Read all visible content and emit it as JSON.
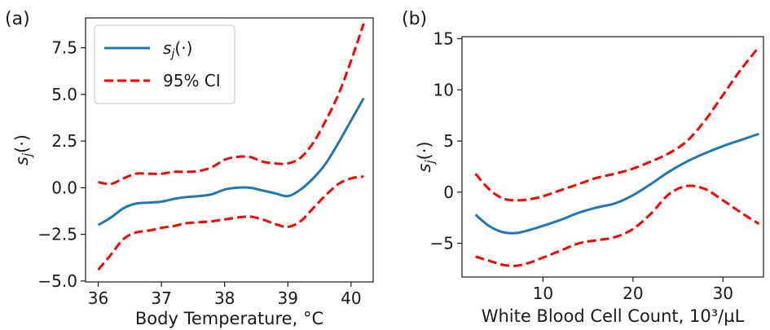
{
  "chart_data": [
    {
      "panel_label": "(a)",
      "type": "line",
      "xlabel": "Body Temperature, °C",
      "ylabel": "sj(·)",
      "xlim": [
        35.8,
        40.35
      ],
      "ylim": [
        -5.05,
        9.1
      ],
      "xticks": [
        36,
        37,
        38,
        39,
        40
      ],
      "yticks": [
        -5.0,
        -2.5,
        0.0,
        2.5,
        5.0,
        7.5
      ],
      "ytick_labels": [
        "−5.0",
        "−2.5",
        "0.0",
        "2.5",
        "5.0",
        "7.5"
      ],
      "grid": false,
      "legend": {
        "placement": "top-left",
        "entries": [
          {
            "label": "sj(·)",
            "style": "solid",
            "color": "#1f77b4"
          },
          {
            "label": "95% CI",
            "style": "dashed",
            "color": "#ff0000"
          }
        ]
      },
      "series": [
        {
          "name": "sj(·)",
          "color": "#1f77b4",
          "style": "solid",
          "x": [
            36.0,
            36.2,
            36.4,
            36.6,
            36.8,
            37.0,
            37.2,
            37.4,
            37.6,
            37.8,
            38.0,
            38.2,
            38.4,
            38.6,
            38.8,
            39.0,
            39.2,
            39.4,
            39.6,
            39.8,
            40.0,
            40.2
          ],
          "y": [
            -2.0,
            -1.6,
            -1.1,
            -0.85,
            -0.8,
            -0.75,
            -0.6,
            -0.5,
            -0.45,
            -0.35,
            -0.1,
            0.0,
            0.0,
            -0.15,
            -0.3,
            -0.45,
            -0.1,
            0.5,
            1.3,
            2.4,
            3.6,
            4.8
          ]
        },
        {
          "name": "95% CI",
          "color": "#ff0000",
          "style": "dashed",
          "x": [
            36.0,
            36.2,
            36.4,
            36.6,
            36.8,
            37.0,
            37.2,
            37.4,
            37.6,
            37.8,
            38.0,
            38.2,
            38.4,
            38.6,
            38.8,
            39.0,
            39.2,
            39.4,
            39.6,
            39.8,
            40.0,
            40.2
          ],
          "y": [
            0.3,
            0.2,
            0.5,
            0.75,
            0.75,
            0.75,
            0.85,
            0.85,
            0.9,
            1.1,
            1.5,
            1.65,
            1.65,
            1.4,
            1.3,
            1.3,
            1.6,
            2.4,
            3.6,
            5.0,
            6.8,
            8.8
          ]
        },
        {
          "name": "",
          "color": "#ff0000",
          "style": "dashed",
          "x": [
            36.0,
            36.2,
            36.4,
            36.6,
            36.8,
            37.0,
            37.2,
            37.4,
            37.6,
            37.8,
            38.0,
            38.2,
            38.4,
            38.6,
            38.8,
            39.0,
            39.2,
            39.4,
            39.6,
            39.8,
            40.0,
            40.2
          ],
          "y": [
            -4.4,
            -3.6,
            -2.75,
            -2.4,
            -2.3,
            -2.15,
            -2.05,
            -1.9,
            -1.85,
            -1.8,
            -1.7,
            -1.6,
            -1.55,
            -1.7,
            -1.95,
            -2.1,
            -1.8,
            -1.1,
            -0.4,
            0.2,
            0.5,
            0.6
          ]
        }
      ]
    },
    {
      "panel_label": "(b)",
      "type": "line",
      "xlabel": "White Blood Cell Count, 10³/µL",
      "ylabel": "sj(·)",
      "xlim": [
        1.0,
        34.5
      ],
      "ylim": [
        -8.3,
        15.2
      ],
      "xticks": [
        10,
        20,
        30
      ],
      "yticks": [
        -5,
        0,
        5,
        10,
        15
      ],
      "ytick_labels": [
        "−5",
        "0",
        "5",
        "10",
        "15"
      ],
      "grid": false,
      "series": [
        {
          "name": "sj(·)",
          "color": "#1f77b4",
          "style": "solid",
          "x": [
            2.5,
            4,
            5.5,
            7,
            8.5,
            10,
            12,
            14,
            16,
            18,
            20,
            22,
            24,
            26,
            28,
            30,
            32,
            34
          ],
          "y": [
            -2.2,
            -3.3,
            -3.9,
            -4.0,
            -3.7,
            -3.3,
            -2.7,
            -2.0,
            -1.5,
            -1.1,
            -0.3,
            0.8,
            2.0,
            3.0,
            3.8,
            4.5,
            5.1,
            5.7
          ]
        },
        {
          "name": "95% CI",
          "color": "#ff0000",
          "style": "dashed",
          "x": [
            2.5,
            4,
            5.5,
            7,
            8.5,
            10,
            12,
            14,
            16,
            18,
            20,
            22,
            24,
            26,
            28,
            30,
            32,
            34
          ],
          "y": [
            1.8,
            0.3,
            -0.6,
            -0.8,
            -0.7,
            -0.4,
            0.2,
            0.8,
            1.4,
            1.8,
            2.3,
            3.0,
            3.8,
            5.0,
            7.0,
            9.5,
            12.0,
            14.2
          ]
        },
        {
          "name": "",
          "color": "#ff0000",
          "style": "dashed",
          "x": [
            2.5,
            4,
            5.5,
            7,
            8.5,
            10,
            12,
            14,
            16,
            18,
            20,
            22,
            24,
            26,
            28,
            30,
            32,
            34
          ],
          "y": [
            -6.3,
            -6.7,
            -7.1,
            -7.2,
            -6.9,
            -6.4,
            -5.7,
            -5.0,
            -4.7,
            -4.4,
            -3.6,
            -2.1,
            -0.2,
            0.6,
            0.3,
            -0.8,
            -2.0,
            -3.1
          ]
        }
      ]
    }
  ]
}
